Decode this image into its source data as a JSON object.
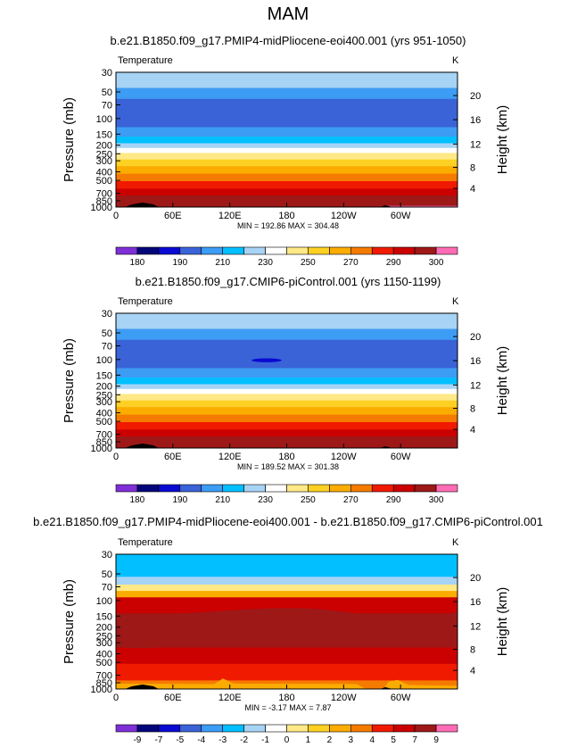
{
  "page_title": "MAM",
  "chart_data": [
    {
      "type": "heatmap",
      "title": "b.e21.B1850.f09_g17.PMIP4-midPliocene-eoi400.001 (yrs 951-1050)",
      "field_label": "Temperature",
      "units": "K",
      "ylabel": "Pressure (mb)",
      "y2label": "Height (km)",
      "xticks": [
        "0",
        "60E",
        "120E",
        "180",
        "120W",
        "60W"
      ],
      "yticks": [
        "30",
        "50",
        "70",
        "100",
        "150",
        "200",
        "250",
        "300",
        "400",
        "500",
        "700",
        "850",
        "1000"
      ],
      "y2ticks": [
        "20",
        "16",
        "12",
        "8",
        "4"
      ],
      "ylim": [
        30,
        1000
      ],
      "min_max_text": "MIN = 192.86   MAX = 304.48",
      "min": 192.86,
      "max": 304.48,
      "colorbar_labels": [
        "180",
        "190",
        "210",
        "230",
        "250",
        "270",
        "290",
        "300"
      ],
      "colorbar_colors": [
        "#7f2fd6",
        "#05057a",
        "#0a0ad2",
        "#3a63d8",
        "#3d9cf4",
        "#02bfff",
        "#a7d3f5",
        "#ffffff",
        "#ffe986",
        "#fdd023",
        "#fbac00",
        "#f57b00",
        "#f01a00",
        "#cb0000",
        "#9e1818",
        "#ff6cb5"
      ]
    },
    {
      "type": "heatmap",
      "title": "b.e21.B1850.f09_g17.CMIP6-piControl.001 (yrs 1150-1199)",
      "field_label": "Temperature",
      "units": "K",
      "ylabel": "Pressure (mb)",
      "y2label": "Height (km)",
      "xticks": [
        "0",
        "60E",
        "120E",
        "180",
        "120W",
        "60W"
      ],
      "yticks": [
        "30",
        "50",
        "70",
        "100",
        "150",
        "200",
        "250",
        "300",
        "400",
        "500",
        "700",
        "850",
        "1000"
      ],
      "y2ticks": [
        "20",
        "16",
        "12",
        "8",
        "4"
      ],
      "ylim": [
        30,
        1000
      ],
      "min_max_text": "MIN = 189.52   MAX = 301.38",
      "min": 189.52,
      "max": 301.38,
      "colorbar_labels": [
        "180",
        "190",
        "210",
        "230",
        "250",
        "270",
        "290",
        "300"
      ],
      "colorbar_colors": [
        "#7f2fd6",
        "#05057a",
        "#0a0ad2",
        "#3a63d8",
        "#3d9cf4",
        "#02bfff",
        "#a7d3f5",
        "#ffffff",
        "#ffe986",
        "#fdd023",
        "#fbac00",
        "#f57b00",
        "#f01a00",
        "#cb0000",
        "#9e1818",
        "#ff6cb5"
      ]
    },
    {
      "type": "heatmap",
      "title": "b.e21.B1850.f09_g17.PMIP4-midPliocene-eoi400.001 - b.e21.B1850.f09_g17.CMIP6-piControl.001",
      "field_label": "Temperature",
      "units": "K",
      "ylabel": "Pressure (mb)",
      "y2label": "Height (km)",
      "xticks": [
        "0",
        "60E",
        "120E",
        "180",
        "120W",
        "60W"
      ],
      "yticks": [
        "30",
        "50",
        "70",
        "100",
        "150",
        "200",
        "250",
        "300",
        "400",
        "500",
        "700",
        "850",
        "1000"
      ],
      "y2ticks": [
        "20",
        "16",
        "12",
        "8",
        "4"
      ],
      "ylim": [
        30,
        1000
      ],
      "min_max_text": "MIN =   -3.17   MAX =   7.87",
      "min": -3.17,
      "max": 7.87,
      "colorbar_labels": [
        "-9",
        "-7",
        "-5",
        "-4",
        "-3",
        "-2",
        "-1",
        "0",
        "1",
        "2",
        "3",
        "4",
        "5",
        "7",
        "9"
      ],
      "colorbar_colors": [
        "#7f2fd6",
        "#05057a",
        "#0a0ad2",
        "#3a63d8",
        "#3d9cf4",
        "#02bfff",
        "#a7d3f5",
        "#ffffff",
        "#ffe986",
        "#fdd023",
        "#fbac00",
        "#f57b00",
        "#f01a00",
        "#cb0000",
        "#9e1818",
        "#ff6cb5"
      ]
    }
  ]
}
